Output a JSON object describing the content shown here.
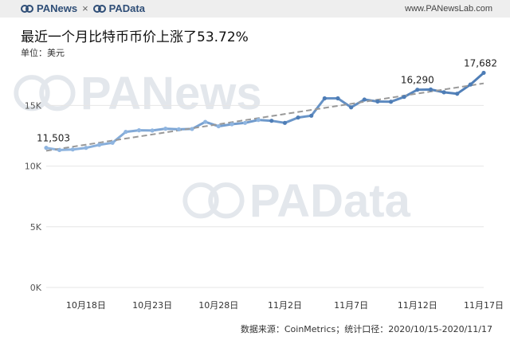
{
  "header": {
    "brand_left": "PANews",
    "brand_separator": "×",
    "brand_right": "PAData",
    "site_url": "www.PANewsLab.com"
  },
  "title": "最近一个月比特币币价上涨了53.72%",
  "unit": "单位：美元",
  "source": "数据来源：CoinMetrics；统计口径：2020/10/15-2020/11/17",
  "watermarks": {
    "top": "PANews",
    "bottom": "PAData"
  },
  "colors": {
    "line": "#4e7db6",
    "line_start": "#8fb5e0",
    "trend": "#999999",
    "grid": "#e6e6e6",
    "brand": "#2f4e77"
  },
  "chart_data": {
    "type": "line",
    "x": [
      "2020-10-15",
      "2020-10-16",
      "2020-10-17",
      "2020-10-18",
      "2020-10-19",
      "2020-10-20",
      "2020-10-21",
      "2020-10-22",
      "2020-10-23",
      "2020-10-24",
      "2020-10-25",
      "2020-10-26",
      "2020-10-27",
      "2020-10-28",
      "2020-10-29",
      "2020-10-30",
      "2020-10-31",
      "2020-11-01",
      "2020-11-02",
      "2020-11-03",
      "2020-11-04",
      "2020-11-05",
      "2020-11-06",
      "2020-11-07",
      "2020-11-08",
      "2020-11-09",
      "2020-11-10",
      "2020-11-11",
      "2020-11-12",
      "2020-11-13",
      "2020-11-14",
      "2020-11-15",
      "2020-11-16",
      "2020-11-17"
    ],
    "series": [
      {
        "values": [
          11503,
          11320,
          11370,
          11500,
          11750,
          11920,
          12820,
          12950,
          12930,
          13080,
          13030,
          13060,
          13640,
          13280,
          13450,
          13560,
          13800,
          13730,
          13560,
          14000,
          14150,
          15580,
          15580,
          14840,
          15480,
          15320,
          15300,
          15700,
          16290,
          16310,
          16080,
          15960,
          16720,
          17682
        ]
      }
    ],
    "trendline": true,
    "annotations": [
      {
        "x": "2020-10-15",
        "label": "11,503"
      },
      {
        "x": "2020-11-12",
        "label": "16,290"
      },
      {
        "x": "2020-11-17",
        "label": "17,682"
      }
    ],
    "yticks": [
      {
        "value": 0,
        "label": "0K"
      },
      {
        "value": 5000,
        "label": "5K"
      },
      {
        "value": 10000,
        "label": "10K"
      },
      {
        "value": 15000,
        "label": "15K"
      }
    ],
    "xticks": [
      {
        "x": "2020-10-18",
        "label": "10月18日"
      },
      {
        "x": "2020-10-23",
        "label": "10月23日"
      },
      {
        "x": "2020-10-28",
        "label": "10月28日"
      },
      {
        "x": "2020-11-02",
        "label": "11月2日"
      },
      {
        "x": "2020-11-07",
        "label": "11月7日"
      },
      {
        "x": "2020-11-12",
        "label": "11月12日"
      },
      {
        "x": "2020-11-17",
        "label": "11月17日"
      }
    ],
    "ylim": [
      0,
      18500
    ],
    "grid": true
  }
}
